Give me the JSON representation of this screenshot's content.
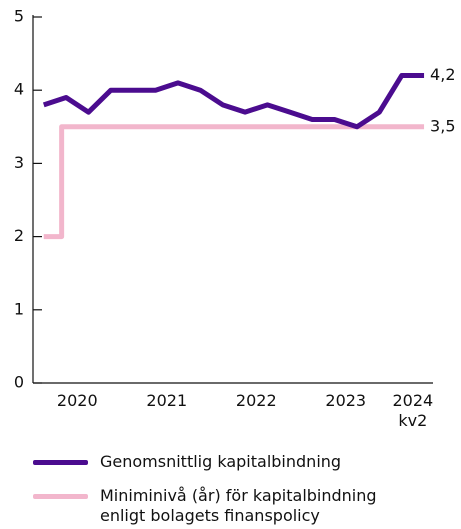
{
  "chart_data": {
    "type": "line",
    "ylim": [
      0,
      5
    ],
    "yticks": [
      0,
      1,
      2,
      3,
      4,
      5
    ],
    "xlim": [
      2019.88,
      2024.35
    ],
    "xticks": [
      {
        "value": 2020.375,
        "label": "2020"
      },
      {
        "value": 2021.375,
        "label": "2021"
      },
      {
        "value": 2022.375,
        "label": "2022"
      },
      {
        "value": 2023.375,
        "label": "2023"
      },
      {
        "value": 2024.125,
        "label": "2024\nkv2"
      }
    ],
    "series": [
      {
        "name": "Genomsnittlig kapitalbindning",
        "color": "#4b0c8f",
        "x": [
          2020,
          2020.25,
          2020.5,
          2020.75,
          2021,
          2021.25,
          2021.5,
          2021.75,
          2022,
          2022.25,
          2022.5,
          2022.75,
          2023,
          2023.25,
          2023.5,
          2023.75,
          2024,
          2024.25
        ],
        "values": [
          3.8,
          3.9,
          3.7,
          4.0,
          4.0,
          4.0,
          4.1,
          4.0,
          3.8,
          3.7,
          3.8,
          3.7,
          3.6,
          3.6,
          3.5,
          3.7,
          4.2,
          4.2
        ],
        "value_labels": [
          null,
          null,
          null,
          null,
          null,
          null,
          null,
          null,
          null,
          null,
          null,
          null,
          null,
          null,
          null,
          null,
          null,
          "4,2"
        ]
      },
      {
        "name": "Miniminivå (år) för kapitalbindning\nenligt bolagets finanspolicy",
        "color": "#f2b6cc",
        "x": [
          2020,
          2020.2,
          2020.2,
          2024.25
        ],
        "values": [
          2,
          2,
          3.5,
          3.5
        ],
        "value_labels": [
          null,
          null,
          null,
          "3,5"
        ]
      }
    ]
  }
}
